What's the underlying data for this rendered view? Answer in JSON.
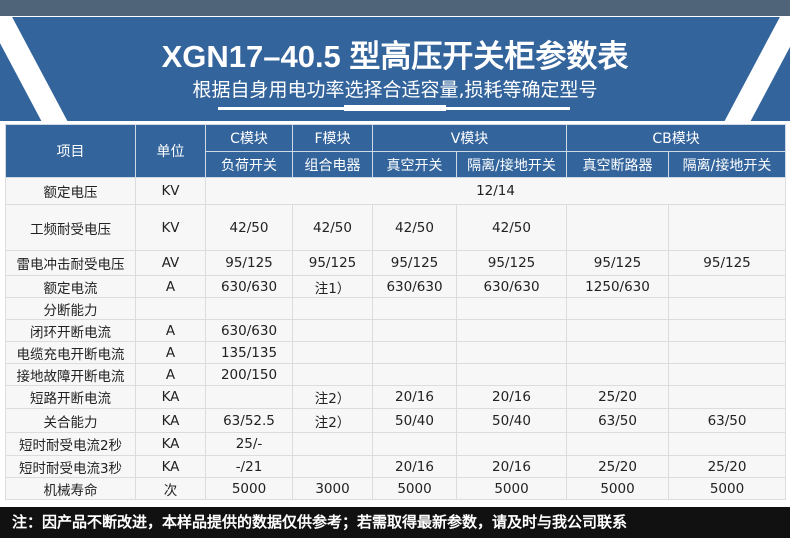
{
  "banner": {
    "title": "XGN17–40.5 型高压开关柜参数表",
    "subtitle": "根据自身用电功率选择合适容量,损耗等确定型号"
  },
  "table": {
    "headers": {
      "item": "项目",
      "unit": "单位",
      "groups": [
        "C模块",
        "F模块",
        "V模块",
        "CB模块"
      ],
      "sub": [
        "负荷开关",
        "组合电器",
        "真空开关",
        "隔离/接地开关",
        "真空断路器",
        "隔离/接地开关"
      ]
    },
    "rated_voltage": {
      "label": "额定电压",
      "unit": "KV",
      "value": "12/14"
    },
    "rows": [
      {
        "label": "工频耐受电压",
        "unit": "KV",
        "values": [
          "42/50",
          "42/50",
          "42/50",
          "42/50",
          "",
          ""
        ]
      },
      {
        "label": "雷电冲击耐受电压",
        "unit": "AV",
        "values": [
          "95/125",
          "95/125",
          "95/125",
          "95/125",
          "95/125",
          "95/125"
        ]
      },
      {
        "label": "额定电流",
        "unit": "A",
        "values": [
          "630/630",
          "注1）",
          "630/630",
          "630/630",
          "1250/630",
          ""
        ]
      },
      {
        "label": "分断能力",
        "unit": "",
        "values": [
          "",
          "",
          "",
          "",
          "",
          ""
        ]
      },
      {
        "label": "闭环开断电流",
        "unit": "A",
        "values": [
          "630/630",
          "",
          "",
          "",
          "",
          ""
        ]
      },
      {
        "label": "电缆充电开断电流",
        "unit": "A",
        "values": [
          "135/135",
          "",
          "",
          "",
          "",
          ""
        ]
      },
      {
        "label": "接地故障开断电流",
        "unit": "A",
        "values": [
          "200/150",
          "",
          "",
          "",
          "",
          ""
        ]
      },
      {
        "label": "短路开断电流",
        "unit": "KA",
        "values": [
          "",
          "注2）",
          "20/16",
          "20/16",
          "25/20",
          ""
        ]
      },
      {
        "label": "关合能力",
        "unit": "KA",
        "values": [
          "63/52.5",
          "注2）",
          "50/40",
          "50/40",
          "63/50",
          "63/50"
        ]
      },
      {
        "label": "短时耐受电流2秒",
        "unit": "KA",
        "values": [
          "25/-",
          "",
          "",
          "",
          "",
          ""
        ]
      },
      {
        "label": "短时耐受电流3秒",
        "unit": "KA",
        "values": [
          "-/21",
          "",
          "20/16",
          "20/16",
          "25/20",
          "25/20"
        ]
      },
      {
        "label": "机械寿命",
        "unit": "次",
        "values": [
          "5000",
          "3000",
          "5000",
          "5000",
          "5000",
          "5000"
        ]
      }
    ]
  },
  "footer": "注：因产品不断改进，本样品提供的数据仅供参考；若需取得最新参数，请及时与我公司联系"
}
